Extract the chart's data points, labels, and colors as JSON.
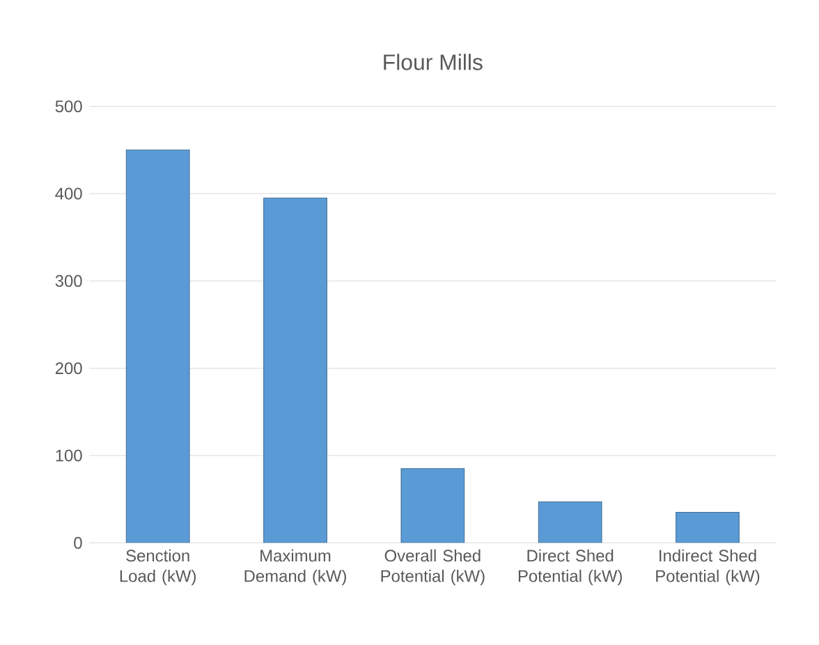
{
  "chart_data": {
    "type": "bar",
    "title": "Flour Mills",
    "categories": [
      "Senction Load (kW)",
      "Maximum Demand (kW)",
      "Overall Shed Potential (kW)",
      "Direct Shed Potential (kW)",
      "Indirect Shed Potential (kW)"
    ],
    "values": [
      450,
      395,
      85,
      47,
      35
    ],
    "color": "#5b9bd5",
    "ylim": [
      0,
      500
    ],
    "yticks": [
      0,
      100,
      200,
      300,
      400,
      500
    ],
    "grid": "y"
  }
}
